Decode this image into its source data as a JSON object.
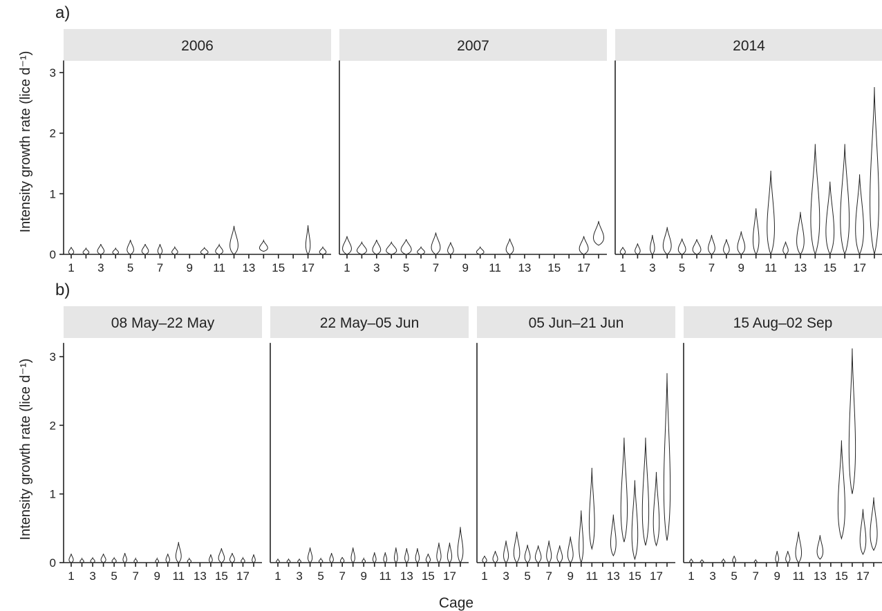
{
  "chart_data": {
    "type": "violin",
    "shared": {
      "xlabel": "Cage",
      "ylabel": "Intensity growth rate (lice d⁻¹)",
      "ylim": [
        0,
        3.2
      ],
      "yticks": [
        "0",
        "1",
        "2",
        "3"
      ],
      "xticks": [
        "1",
        "3",
        "5",
        "7",
        "9",
        "11",
        "13",
        "15",
        "17"
      ],
      "cages": 18
    },
    "figures": [
      {
        "tag": "a)",
        "panels": [
          {
            "strip": "2006",
            "show_yaxis": true,
            "violins": [
              {
                "cage": 1,
                "max": 0.12,
                "w": 0.35
              },
              {
                "cage": 2,
                "max": 0.1,
                "w": 0.4
              },
              {
                "cage": 3,
                "max": 0.17,
                "w": 0.45
              },
              {
                "cage": 4,
                "max": 0.1,
                "w": 0.4
              },
              {
                "cage": 5,
                "max": 0.24,
                "w": 0.45
              },
              {
                "cage": 6,
                "max": 0.17,
                "w": 0.45
              },
              {
                "cage": 7,
                "max": 0.17,
                "w": 0.3
              },
              {
                "cage": 8,
                "max": 0.12,
                "w": 0.4
              },
              {
                "cage": 10,
                "max": 0.11,
                "w": 0.5
              },
              {
                "cage": 11,
                "max": 0.16,
                "w": 0.5
              },
              {
                "cage": 12,
                "max": 0.47,
                "w": 0.55
              },
              {
                "cage": 14,
                "min": 0.05,
                "max": 0.23,
                "w": 0.55
              },
              {
                "cage": 17,
                "max": 0.48,
                "w": 0.3
              },
              {
                "cage": 18,
                "max": 0.12,
                "w": 0.45
              }
            ]
          },
          {
            "strip": "2007",
            "show_yaxis": false,
            "violins": [
              {
                "cage": 1,
                "max": 0.3,
                "w": 0.6
              },
              {
                "cage": 2,
                "max": 0.2,
                "w": 0.65
              },
              {
                "cage": 3,
                "max": 0.24,
                "w": 0.55
              },
              {
                "cage": 4,
                "max": 0.2,
                "w": 0.7
              },
              {
                "cage": 5,
                "max": 0.25,
                "w": 0.7
              },
              {
                "cage": 6,
                "max": 0.12,
                "w": 0.5
              },
              {
                "cage": 7,
                "max": 0.36,
                "w": 0.6
              },
              {
                "cage": 8,
                "max": 0.2,
                "w": 0.4
              },
              {
                "cage": 10,
                "max": 0.12,
                "w": 0.5
              },
              {
                "cage": 12,
                "max": 0.26,
                "w": 0.5
              },
              {
                "cage": 17,
                "max": 0.3,
                "w": 0.6
              },
              {
                "cage": 18,
                "min": 0.15,
                "max": 0.55,
                "w": 0.7
              }
            ]
          },
          {
            "strip": "2014",
            "show_yaxis": false,
            "violins": [
              {
                "cage": 1,
                "max": 0.12,
                "w": 0.35
              },
              {
                "cage": 2,
                "max": 0.18,
                "w": 0.35
              },
              {
                "cage": 3,
                "max": 0.32,
                "w": 0.3
              },
              {
                "cage": 4,
                "max": 0.45,
                "w": 0.55
              },
              {
                "cage": 5,
                "max": 0.26,
                "w": 0.5
              },
              {
                "cage": 6,
                "max": 0.25,
                "w": 0.55
              },
              {
                "cage": 7,
                "max": 0.32,
                "w": 0.45
              },
              {
                "cage": 8,
                "max": 0.25,
                "w": 0.4
              },
              {
                "cage": 9,
                "max": 0.38,
                "w": 0.5
              },
              {
                "cage": 10,
                "max": 0.76,
                "w": 0.4
              },
              {
                "cage": 11,
                "max": 1.38,
                "w": 0.5
              },
              {
                "cage": 12,
                "max": 0.21,
                "w": 0.35
              },
              {
                "cage": 13,
                "max": 0.7,
                "w": 0.5
              },
              {
                "cage": 14,
                "max": 1.82,
                "w": 0.6
              },
              {
                "cage": 15,
                "max": 1.2,
                "w": 0.55
              },
              {
                "cage": 16,
                "max": 1.82,
                "w": 0.6
              },
              {
                "cage": 17,
                "max": 1.32,
                "w": 0.55
              },
              {
                "cage": 18,
                "max": 2.76,
                "w": 0.6
              }
            ]
          }
        ]
      },
      {
        "tag": "b)",
        "panels": [
          {
            "strip": "08 May–22 May",
            "show_yaxis": true,
            "violins": [
              {
                "cage": 1,
                "max": 0.13,
                "w": 0.4
              },
              {
                "cage": 2,
                "max": 0.06,
                "w": 0.35
              },
              {
                "cage": 3,
                "max": 0.07,
                "w": 0.4
              },
              {
                "cage": 4,
                "max": 0.13,
                "w": 0.45
              },
              {
                "cage": 5,
                "max": 0.07,
                "w": 0.4
              },
              {
                "cage": 6,
                "max": 0.14,
                "w": 0.35
              },
              {
                "cage": 7,
                "max": 0.06,
                "w": 0.3
              },
              {
                "cage": 9,
                "max": 0.06,
                "w": 0.3
              },
              {
                "cage": 10,
                "max": 0.13,
                "w": 0.35
              },
              {
                "cage": 11,
                "max": 0.3,
                "w": 0.5
              },
              {
                "cage": 12,
                "max": 0.06,
                "w": 0.35
              },
              {
                "cage": 14,
                "max": 0.12,
                "w": 0.3
              },
              {
                "cage": 15,
                "max": 0.21,
                "w": 0.55
              },
              {
                "cage": 16,
                "max": 0.14,
                "w": 0.45
              },
              {
                "cage": 17,
                "max": 0.07,
                "w": 0.35
              },
              {
                "cage": 18,
                "max": 0.12,
                "w": 0.3
              }
            ]
          },
          {
            "strip": "22 May–05 Jun",
            "show_yaxis": false,
            "violins": [
              {
                "cage": 1,
                "max": 0.05,
                "w": 0.3
              },
              {
                "cage": 2,
                "max": 0.05,
                "w": 0.3
              },
              {
                "cage": 3,
                "max": 0.05,
                "w": 0.3
              },
              {
                "cage": 4,
                "max": 0.22,
                "w": 0.4
              },
              {
                "cage": 5,
                "max": 0.06,
                "w": 0.35
              },
              {
                "cage": 6,
                "max": 0.14,
                "w": 0.35
              },
              {
                "cage": 7,
                "max": 0.08,
                "w": 0.35
              },
              {
                "cage": 8,
                "max": 0.22,
                "w": 0.35
              },
              {
                "cage": 9,
                "max": 0.06,
                "w": 0.3
              },
              {
                "cage": 10,
                "max": 0.15,
                "w": 0.3
              },
              {
                "cage": 11,
                "max": 0.15,
                "w": 0.3
              },
              {
                "cage": 12,
                "max": 0.22,
                "w": 0.3
              },
              {
                "cage": 13,
                "max": 0.21,
                "w": 0.35
              },
              {
                "cage": 14,
                "max": 0.21,
                "w": 0.35
              },
              {
                "cage": 15,
                "max": 0.13,
                "w": 0.4
              },
              {
                "cage": 16,
                "max": 0.29,
                "w": 0.4
              },
              {
                "cage": 17,
                "max": 0.29,
                "w": 0.4
              },
              {
                "cage": 18,
                "max": 0.52,
                "w": 0.5
              }
            ]
          },
          {
            "strip": "05 Jun–21 Jun",
            "show_yaxis": false,
            "violins": [
              {
                "cage": 1,
                "max": 0.1,
                "w": 0.4
              },
              {
                "cage": 2,
                "max": 0.17,
                "w": 0.45
              },
              {
                "cage": 3,
                "max": 0.32,
                "w": 0.45
              },
              {
                "cage": 4,
                "max": 0.45,
                "w": 0.55
              },
              {
                "cage": 5,
                "max": 0.26,
                "w": 0.5
              },
              {
                "cage": 6,
                "max": 0.25,
                "w": 0.55
              },
              {
                "cage": 7,
                "max": 0.32,
                "w": 0.45
              },
              {
                "cage": 8,
                "max": 0.25,
                "w": 0.5
              },
              {
                "cage": 9,
                "max": 0.38,
                "w": 0.5
              },
              {
                "cage": 10,
                "max": 0.76,
                "w": 0.4
              },
              {
                "cage": 11,
                "min": 0.2,
                "max": 1.38,
                "w": 0.5
              },
              {
                "cage": 13,
                "min": 0.1,
                "max": 0.7,
                "w": 0.5
              },
              {
                "cage": 14,
                "min": 0.3,
                "max": 1.82,
                "w": 0.6
              },
              {
                "cage": 15,
                "min": 0.05,
                "max": 1.2,
                "w": 0.55
              },
              {
                "cage": 16,
                "min": 0.25,
                "max": 1.82,
                "w": 0.6
              },
              {
                "cage": 17,
                "min": 0.25,
                "max": 1.32,
                "w": 0.55
              },
              {
                "cage": 18,
                "min": 0.32,
                "max": 2.76,
                "w": 0.6
              }
            ]
          },
          {
            "strip": "15 Aug–02 Sep",
            "show_yaxis": false,
            "violins": [
              {
                "cage": 1,
                "max": 0.05,
                "w": 0.3
              },
              {
                "cage": 2,
                "max": 0.04,
                "w": 0.3
              },
              {
                "cage": 4,
                "max": 0.05,
                "w": 0.3
              },
              {
                "cage": 5,
                "max": 0.1,
                "w": 0.3
              },
              {
                "cage": 7,
                "max": 0.04,
                "w": 0.25
              },
              {
                "cage": 9,
                "max": 0.17,
                "w": 0.3
              },
              {
                "cage": 10,
                "max": 0.17,
                "w": 0.4
              },
              {
                "cage": 11,
                "max": 0.45,
                "w": 0.55
              },
              {
                "cage": 13,
                "min": 0.05,
                "max": 0.4,
                "w": 0.55
              },
              {
                "cage": 15,
                "min": 0.35,
                "max": 1.78,
                "w": 0.65
              },
              {
                "cage": 16,
                "min": 1.0,
                "max": 3.12,
                "w": 0.6
              },
              {
                "cage": 17,
                "min": 0.12,
                "max": 0.78,
                "w": 0.55
              },
              {
                "cage": 18,
                "min": 0.18,
                "max": 0.95,
                "w": 0.65
              }
            ]
          }
        ]
      }
    ]
  }
}
